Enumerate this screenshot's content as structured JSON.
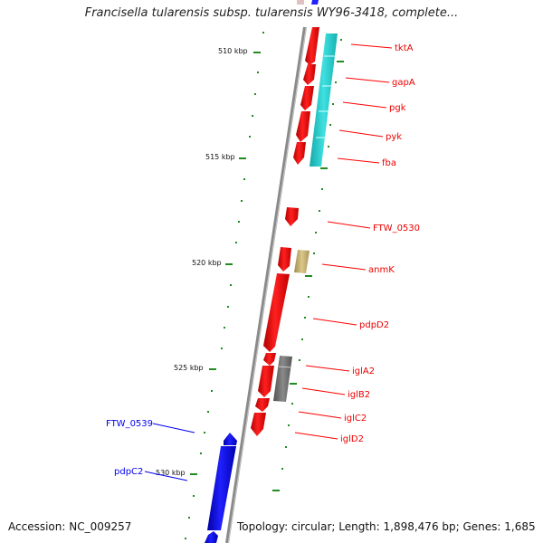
{
  "title": "Francisella tularensis subsp. tularensis WY96-3418, complete...",
  "accession": "Accession: NC_009257",
  "summary": "Topology: circular; Length: 1,898,476 bp; Genes: 1,685",
  "colors": {
    "plus_strand_gene": "#ff0000",
    "minus_strand_gene": "#0000ee",
    "cyan_feature": "#22cccc",
    "khaki_feature": "#c8b070",
    "gray_feature": "#707070",
    "backbone": "#808080",
    "tick": "#228b22"
  },
  "scale_labels": [
    {
      "text": "510 kbp"
    },
    {
      "text": "515 kbp"
    },
    {
      "text": "520 kbp"
    },
    {
      "text": "525 kbp"
    },
    {
      "text": "530 kbp"
    }
  ],
  "gene_labels_right": [
    {
      "text": "tktA"
    },
    {
      "text": "gapA"
    },
    {
      "text": "pgk"
    },
    {
      "text": "pyk"
    },
    {
      "text": "fba"
    },
    {
      "text": "FTW_0530"
    },
    {
      "text": "anmK"
    },
    {
      "text": "pdpD2"
    },
    {
      "text": "iglA2"
    },
    {
      "text": "iglB2"
    },
    {
      "text": "iglC2"
    },
    {
      "text": "iglD2"
    }
  ],
  "gene_labels_left": [
    {
      "text": "FTW_0539"
    },
    {
      "text": "pdpC2"
    }
  ]
}
